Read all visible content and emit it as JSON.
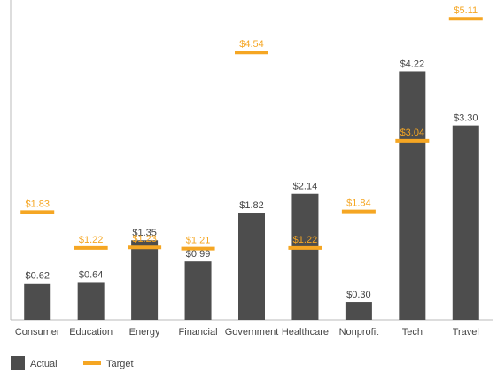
{
  "chart_data": {
    "type": "bar",
    "categories": [
      "Consumer",
      "Education",
      "Energy",
      "Financial",
      "Government",
      "Healthcare",
      "Nonprofit",
      "Tech",
      "Travel"
    ],
    "series": [
      {
        "name": "Actual",
        "color": "#4d4d4d",
        "values": [
          0.62,
          0.64,
          1.35,
          0.99,
          1.82,
          2.14,
          0.3,
          4.22,
          3.3
        ],
        "value_labels": [
          "$0.62",
          "$0.64",
          "$1.35",
          "$0.99",
          "$1.82",
          "$2.14",
          "$0.30",
          "$4.22",
          "$3.30"
        ]
      },
      {
        "name": "Target",
        "color": "#f5a623",
        "values": [
          1.83,
          1.22,
          1.23,
          1.21,
          4.54,
          1.22,
          1.84,
          3.04,
          5.11
        ],
        "value_labels": [
          "$1.83",
          "$1.22",
          "$1.23",
          "$1.21",
          "$4.54",
          "$1.22",
          "$1.84",
          "$3.04",
          "$5.11"
        ]
      }
    ],
    "ylim": [
      0,
      5.25
    ]
  }
}
